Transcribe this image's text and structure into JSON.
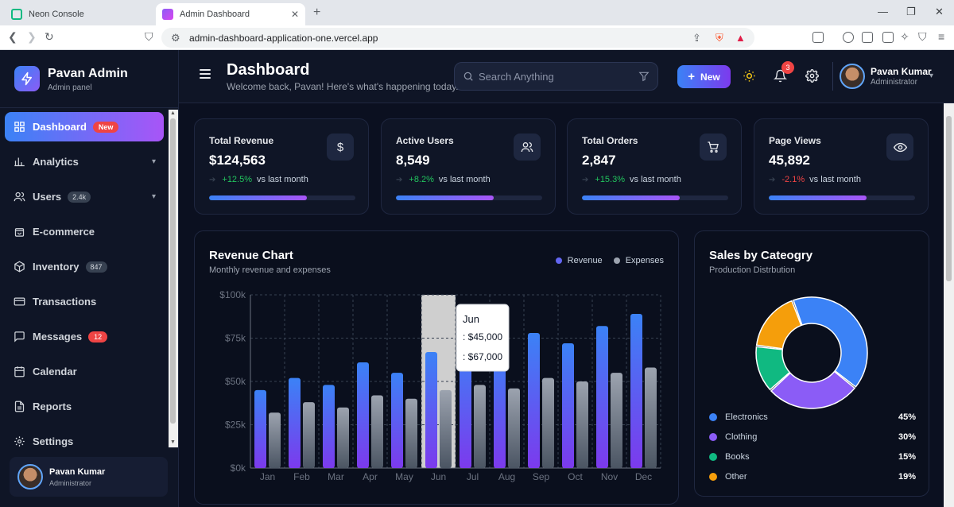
{
  "browser": {
    "tabs": [
      {
        "label": "Neon Console",
        "active": false
      },
      {
        "label": "Admin Dashboard",
        "active": true
      }
    ],
    "url": "admin-dashboard-application-one.vercel.app"
  },
  "sidebar": {
    "brand_title": "Pavan Admin",
    "brand_subtitle": "Admin panel",
    "items": [
      {
        "label": "Dashboard",
        "icon": "grid-icon",
        "badge": "New",
        "badge_style": "new",
        "active": true
      },
      {
        "label": "Analytics",
        "icon": "bar-chart-icon",
        "expandable": true
      },
      {
        "label": "Users",
        "icon": "users-icon",
        "badge": "2.4k",
        "badge_style": "gray",
        "expandable": true
      },
      {
        "label": "E-commerce",
        "icon": "shopping-bag-icon"
      },
      {
        "label": "Inventory",
        "icon": "box-icon",
        "badge": "847",
        "badge_style": "gray"
      },
      {
        "label": "Transactions",
        "icon": "credit-card-icon"
      },
      {
        "label": "Messages",
        "icon": "message-icon",
        "badge": "12",
        "badge_style": "red"
      },
      {
        "label": "Calendar",
        "icon": "calendar-icon"
      },
      {
        "label": "Reports",
        "icon": "file-text-icon"
      },
      {
        "label": "Settings",
        "icon": "gear-icon"
      }
    ],
    "user": {
      "name": "Pavan Kumar",
      "role": "Administrator"
    }
  },
  "header": {
    "title": "Dashboard",
    "subtitle": "Welcome back, Pavan! Here's what's happening today.",
    "search_placeholder": "Search Anything",
    "new_label": "New",
    "notification_count": "3",
    "user": {
      "name": "Pavan Kumar",
      "role": "Administrator"
    }
  },
  "stats": [
    {
      "title": "Total Revenue",
      "value": "$124,563",
      "change": "+12.5%",
      "trend": "up",
      "vs": "vs last month",
      "icon": "dollar-icon",
      "progress": 0.67
    },
    {
      "title": "Active Users",
      "value": "8,549",
      "change": "+8.2%",
      "trend": "up",
      "vs": "vs last month",
      "icon": "users-icon",
      "progress": 0.67
    },
    {
      "title": "Total Orders",
      "value": "2,847",
      "change": "+15.3%",
      "trend": "up",
      "vs": "vs last month",
      "icon": "cart-icon",
      "progress": 0.67
    },
    {
      "title": "Page Views",
      "value": "45,892",
      "change": "-2.1%",
      "trend": "down",
      "vs": "vs last month",
      "icon": "eye-icon",
      "progress": 0.67
    }
  ],
  "revenue_chart": {
    "title": "Revenue Chart",
    "subtitle": "Monthly revenue and expenses",
    "legend": [
      {
        "label": "Revenue",
        "color": "#6366f1"
      },
      {
        "label": "Expenses",
        "color": "#9ca3af"
      }
    ],
    "tooltip": {
      "title": "Jun",
      "line1": ": $45,000",
      "line2": ": $67,000"
    }
  },
  "chart_data": [
    {
      "type": "bar",
      "categories": [
        "Jan",
        "Feb",
        "Mar",
        "Apr",
        "May",
        "Jun",
        "Jul",
        "Aug",
        "Sep",
        "Oct",
        "Nov",
        "Dec"
      ],
      "series": [
        {
          "name": "Revenue",
          "values": [
            45000,
            52000,
            48000,
            61000,
            55000,
            67000,
            72000,
            69000,
            78000,
            72000,
            82000,
            89000
          ]
        },
        {
          "name": "Expenses",
          "values": [
            32000,
            38000,
            35000,
            42000,
            40000,
            45000,
            48000,
            46000,
            52000,
            50000,
            55000,
            58000
          ]
        }
      ],
      "yticks": [
        "$0k",
        "$25k",
        "$50k",
        "$75k",
        "$100k"
      ],
      "ylim": [
        0,
        100000
      ],
      "highlighted_category": "Jun",
      "grid": true
    },
    {
      "type": "pie",
      "title": "Sales by Cateogry",
      "subtitle": "Production Distrbution",
      "labels": [
        "Electronics",
        "Clothing",
        "Books",
        "Other"
      ],
      "values": [
        45,
        30,
        15,
        19
      ],
      "display": [
        "45%",
        "30%",
        "15%",
        "19%"
      ],
      "colors": [
        "#3b82f6",
        "#8b5cf6",
        "#10b981",
        "#f59e0b"
      ]
    }
  ]
}
